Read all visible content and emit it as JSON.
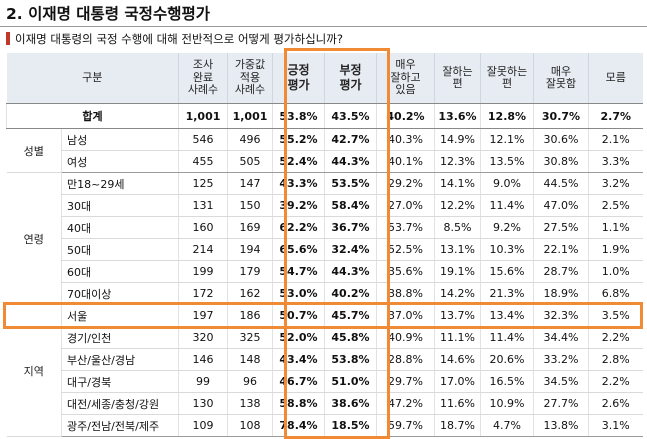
{
  "title": "2. 이재명 대통령 국정수행평가",
  "question": "이재명 대통령의 국정 수행에 대해 전반적으로 어떻게 평가하십니까?",
  "headers": {
    "category": "구분",
    "sample": "조사\n완료\n사례수",
    "weighted": "가중값\n적용\n사례수",
    "positive": "긍정\n평가",
    "negative": "부정\n평가",
    "very_good": "매우\n잘하고\n있음",
    "good": "잘하는\n편",
    "bad": "잘못하는\n편",
    "very_bad": "매우\n잘못함",
    "unknown": "모름"
  },
  "total": {
    "label": "합계",
    "values": [
      "1,001",
      "1,001",
      "53.8%",
      "43.5%",
      "40.2%",
      "13.6%",
      "12.8%",
      "30.7%",
      "2.7%"
    ]
  },
  "groups": [
    {
      "name": "성별",
      "rows": [
        {
          "label": "남성",
          "values": [
            "546",
            "496",
            "55.2%",
            "42.7%",
            "40.3%",
            "14.9%",
            "12.1%",
            "30.6%",
            "2.1%"
          ]
        },
        {
          "label": "여성",
          "values": [
            "455",
            "505",
            "52.4%",
            "44.3%",
            "40.1%",
            "12.3%",
            "13.5%",
            "30.8%",
            "3.3%"
          ]
        }
      ]
    },
    {
      "name": "연령",
      "rows": [
        {
          "label": "만18~29세",
          "values": [
            "125",
            "147",
            "43.3%",
            "53.5%",
            "29.2%",
            "14.1%",
            "9.0%",
            "44.5%",
            "3.2%"
          ]
        },
        {
          "label": "30대",
          "values": [
            "131",
            "150",
            "39.2%",
            "58.4%",
            "27.0%",
            "12.2%",
            "11.4%",
            "47.0%",
            "2.5%"
          ]
        },
        {
          "label": "40대",
          "values": [
            "160",
            "169",
            "62.2%",
            "36.7%",
            "53.7%",
            "8.5%",
            "9.2%",
            "27.5%",
            "1.1%"
          ]
        },
        {
          "label": "50대",
          "values": [
            "214",
            "194",
            "65.6%",
            "32.4%",
            "52.5%",
            "13.1%",
            "10.3%",
            "22.1%",
            "1.9%"
          ]
        },
        {
          "label": "60대",
          "values": [
            "199",
            "179",
            "54.7%",
            "44.3%",
            "35.6%",
            "19.1%",
            "15.6%",
            "28.7%",
            "1.0%"
          ]
        },
        {
          "label": "70대이상",
          "values": [
            "172",
            "162",
            "53.0%",
            "40.2%",
            "38.8%",
            "14.2%",
            "21.3%",
            "18.9%",
            "6.8%"
          ]
        }
      ]
    },
    {
      "name": "지역",
      "rows": [
        {
          "label": "서울",
          "values": [
            "197",
            "186",
            "50.7%",
            "45.7%",
            "37.0%",
            "13.7%",
            "13.4%",
            "32.3%",
            "3.5%"
          ]
        },
        {
          "label": "경기/인천",
          "values": [
            "320",
            "325",
            "52.0%",
            "45.8%",
            "40.9%",
            "11.1%",
            "11.4%",
            "34.4%",
            "2.2%"
          ]
        },
        {
          "label": "부산/울산/경남",
          "values": [
            "146",
            "148",
            "43.4%",
            "53.8%",
            "28.8%",
            "14.6%",
            "20.6%",
            "33.2%",
            "2.8%"
          ]
        },
        {
          "label": "대구/경북",
          "values": [
            "99",
            "96",
            "46.7%",
            "51.0%",
            "29.7%",
            "17.0%",
            "16.5%",
            "34.5%",
            "2.2%"
          ]
        },
        {
          "label": "대전/세종/충청/강원",
          "values": [
            "130",
            "138",
            "58.8%",
            "38.6%",
            "47.2%",
            "11.6%",
            "10.9%",
            "27.7%",
            "2.6%"
          ]
        },
        {
          "label": "광주/전남/전북/제주",
          "values": [
            "109",
            "108",
            "78.4%",
            "18.5%",
            "59.7%",
            "18.7%",
            "4.7%",
            "13.8%",
            "3.1%"
          ]
        }
      ]
    }
  ],
  "colors": {
    "highlight": "#f08a35",
    "header_bg": "#e7ecf3",
    "title_bar": "#c0392b"
  }
}
